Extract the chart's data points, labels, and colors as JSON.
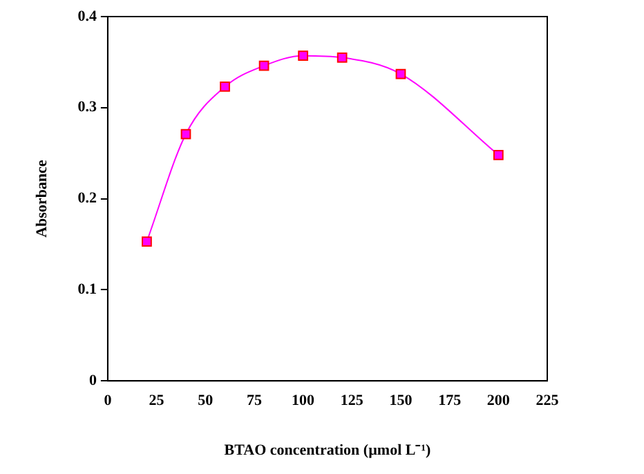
{
  "chart_data": {
    "type": "line",
    "xlabel": "BTAO concentration (µmol L⁻¹)",
    "ylabel": "Absorbance",
    "x": [
      20,
      40,
      60,
      80,
      100,
      120,
      150,
      200
    ],
    "series": [
      {
        "color": "#ff00ff",
        "values": [
          0.153,
          0.271,
          0.323,
          0.346,
          0.357,
          0.355,
          0.337,
          0.248
        ]
      }
    ],
    "xlim": [
      0,
      225
    ],
    "xticks": [
      0,
      25,
      50,
      75,
      100,
      125,
      150,
      175,
      200,
      225
    ],
    "ylim": [
      0,
      0.4
    ],
    "yticks": [
      0,
      0.1,
      0.2,
      0.3,
      0.4
    ],
    "grid": false,
    "legend": false,
    "marker": "square",
    "line_style": "solid"
  }
}
